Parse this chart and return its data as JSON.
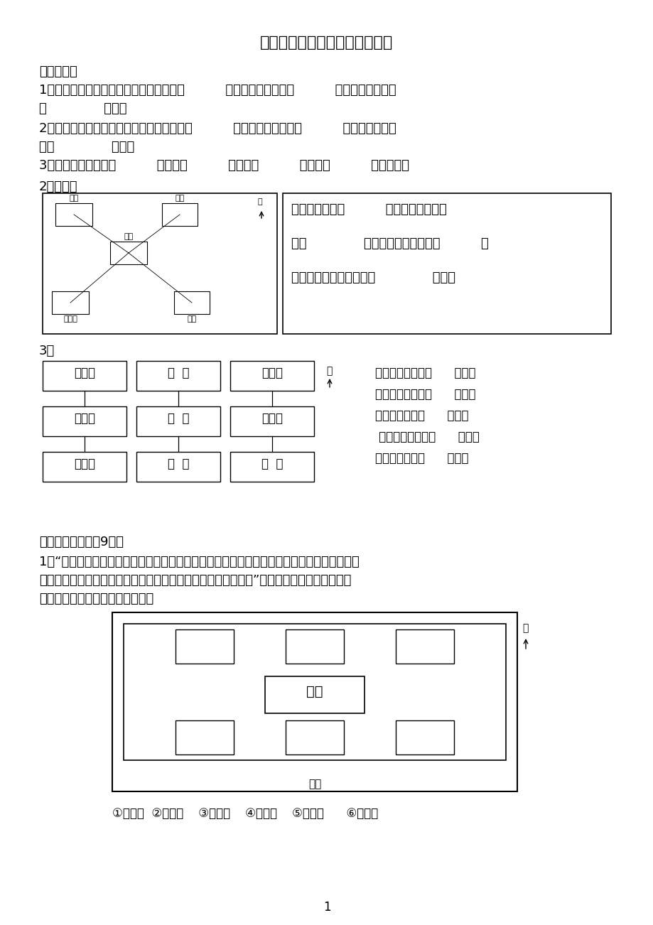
{
  "title": "人教版三年级下册第一单元试题",
  "bg_color": "#ffffff",
  "section1_header": "一、填空：",
  "q1": "1、早晨，当你面对太阳时，你的后面是（          ）面，你的左面是（          ）面，你的右面是",
  "q1b": "（              ）面。",
  "q2": "2、晚上，当你面对北极星时，你的后面是（          ）面，你的左面是（          ）面，你的右面",
  "q2b": "是（              ）面。",
  "q3": "3、地图通常是按上（          ）、下（          ）、左（          ）、右（          ）绘制的。",
  "section2_header": "2、填一填",
  "map_q_right_1": "邮局在学校的（          ）面；超市在学校",
  "map_q_right_2": "的（              ）面；书店在学校的（          ）",
  "map_q_right_3": "面；碧海园在书店的是（              ）面。",
  "section3_header": "3、",
  "grid_labels": [
    [
      "少年宫",
      "商  店",
      "图书馆"
    ],
    [
      "电影院",
      "学  校",
      "体育馆"
    ],
    [
      "动物园",
      "邮  局",
      "医  院"
    ]
  ],
  "grid_questions": [
    "体育馆在学校的（      ）面，",
    "少年宫在学校的（      ）面。",
    "商店在学校的（      ）面，",
    " 电影院在学校的（      ）面，",
    "邮局在学校的（      ）面，"
  ],
  "section4_header": "二、实践操作：（9分）",
  "pq1_line1": "1、“走进科技馆大门，在展厅的正北面有电脑屋，南面有气象馆，在展厅的东北面有环保屋，",
  "pq1_line2": "西北面有天文馆，在展厅有东南面有生物馆，西南面有航模馆。”请你根据小亮的描述，把这",
  "pq1_line3": "些馆名的序号填在适当的位置上。",
  "zhan_label": "展厅",
  "damen_label": "大门",
  "north_label": "北",
  "legend": "①环保屋  ②电脑屋    ③天文馆    ④航模馆    ⑤气象馆      ⑥生物馆",
  "page_num": "1"
}
